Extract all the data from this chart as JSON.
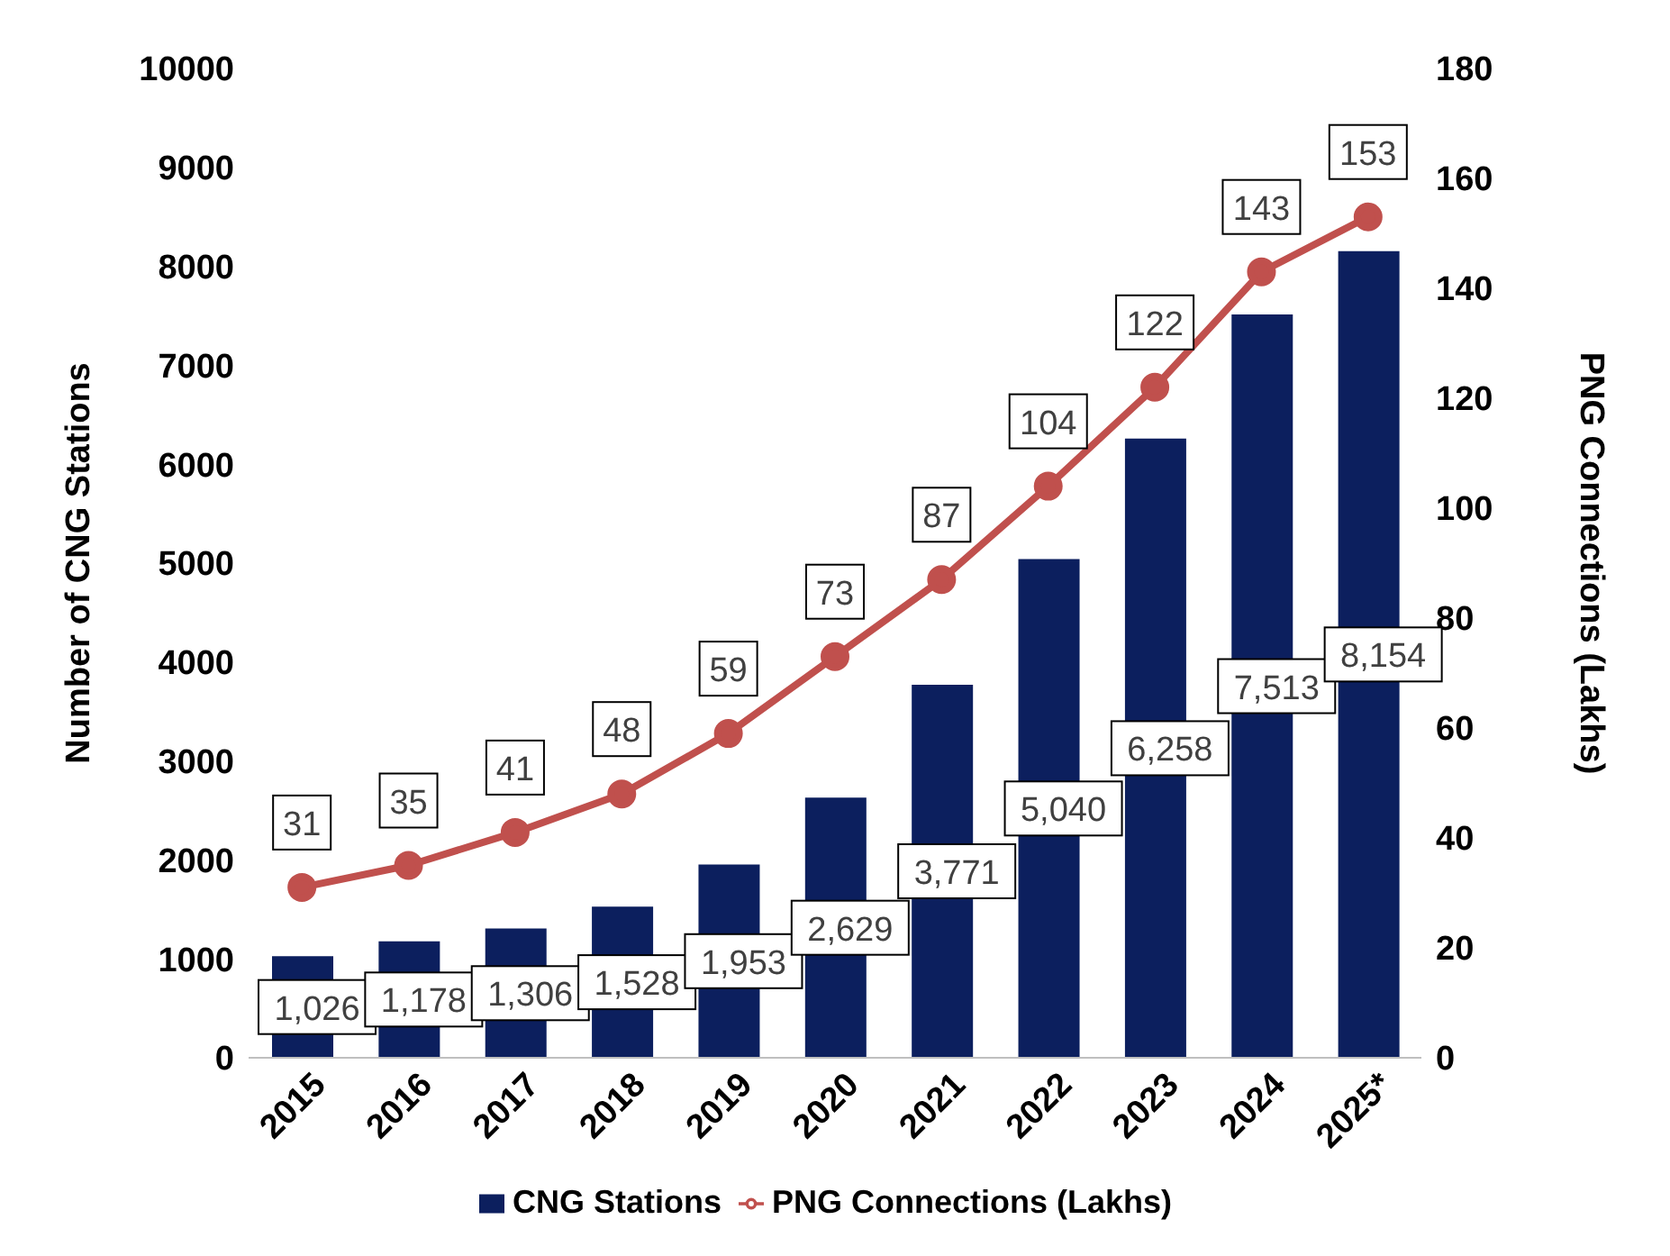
{
  "chart_data": {
    "type": "bar",
    "categories": [
      "2015",
      "2016",
      "2017",
      "2018",
      "2019",
      "2020",
      "2021",
      "2022",
      "2023",
      "2024",
      "2025*"
    ],
    "series": [
      {
        "name": "CNG Stations",
        "color": "#0c1f5e",
        "values": [
          1026,
          1178,
          1306,
          1528,
          1953,
          2629,
          3771,
          5040,
          6258,
          7513,
          8154
        ],
        "value_labels": [
          "1,026",
          "1,178",
          "1,306",
          "1,528",
          "1,953",
          "2,629",
          "3,771",
          "5,040",
          "6,258",
          "7,513",
          "8,154"
        ]
      },
      {
        "name": "PNG Connections (Lakhs)",
        "type": "line",
        "axis": "y2",
        "color": "#c0504d",
        "marker": "circle",
        "values": [
          31,
          35,
          41,
          48,
          59,
          73,
          87,
          104,
          122,
          143,
          153
        ],
        "value_labels": [
          "31",
          "35",
          "41",
          "48",
          "59",
          "73",
          "87",
          "104",
          "122",
          "143",
          "153"
        ]
      }
    ],
    "ylabel": "Number of CNG Stations",
    "y2label": "PNG Connections (Lakhs)",
    "ylim": [
      0,
      10000
    ],
    "yticks": [
      0,
      1000,
      2000,
      3000,
      4000,
      5000,
      6000,
      7000,
      8000,
      9000,
      10000
    ],
    "y2lim": [
      0,
      180
    ],
    "y2ticks": [
      0,
      20,
      40,
      60,
      80,
      100,
      120,
      140,
      160,
      180
    ],
    "legend": "bottom"
  }
}
